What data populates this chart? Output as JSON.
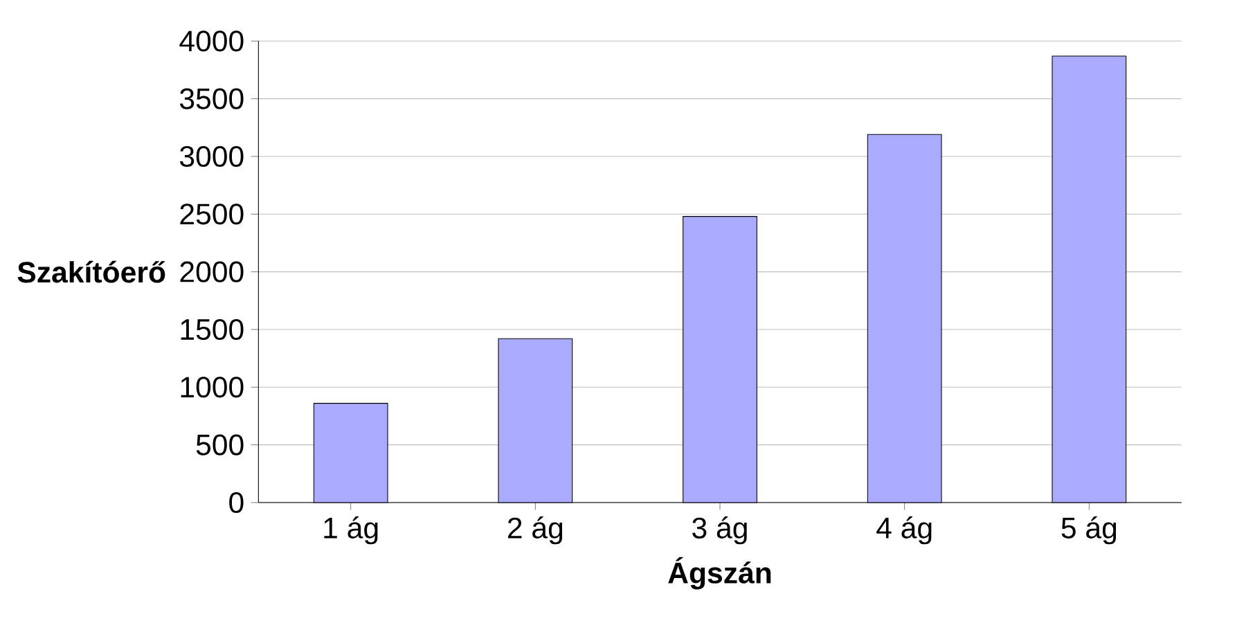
{
  "chart_data": {
    "type": "bar",
    "xlabel": "Ágszán",
    "ylabel": "Szakítóerő",
    "categories": [
      "1 ág",
      "2 ág",
      "3 ág",
      "4 ág",
      "5 ág"
    ],
    "values": [
      860,
      1420,
      2480,
      3190,
      3870
    ],
    "color": "#aaaaff",
    "ylim": [
      0,
      4000
    ],
    "yticks": [
      0,
      500,
      1000,
      1500,
      2000,
      2500,
      3000,
      3500,
      4000
    ],
    "grid": "y"
  }
}
